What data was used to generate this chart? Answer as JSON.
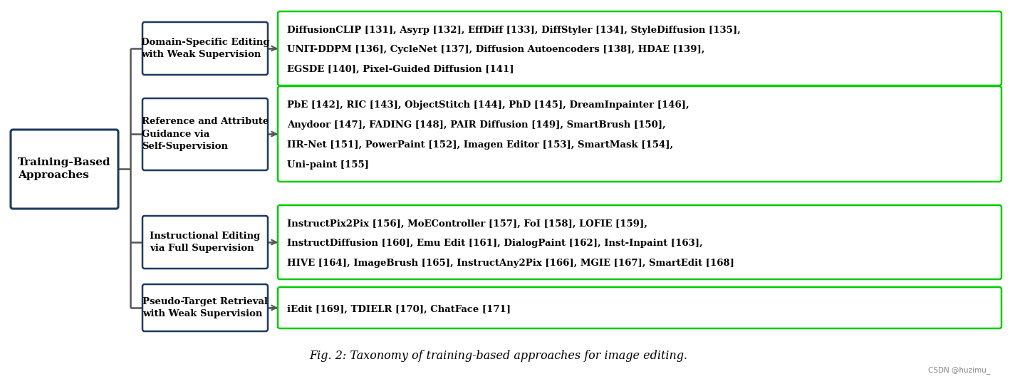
{
  "title": "Fig. 2: Taxonomy of training-based approaches for image editing.",
  "watermark": "CSDN @huzimu_",
  "root_label": "Training-Based\nApproaches",
  "branches": [
    {
      "label": "Domain-Specific Editing\nwith Weak Supervision",
      "content_parts": [
        {
          "text": "DiffusionCLIP ",
          "ref": null
        },
        {
          "text": "131",
          "ref": true
        },
        {
          "text": ", Asyrp ",
          "ref": null
        },
        {
          "text": "132",
          "ref": true
        },
        {
          "text": ", EffDiff ",
          "ref": null
        },
        {
          "text": "133",
          "ref": true
        },
        {
          "text": ", DiffStyler ",
          "ref": null
        },
        {
          "text": "134",
          "ref": true
        },
        {
          "text": ", StyleDiffusion ",
          "ref": null
        },
        {
          "text": "135",
          "ref": true
        },
        {
          "text": ",\nUNIT-DDPM ",
          "ref": null
        },
        {
          "text": "136",
          "ref": true
        },
        {
          "text": ", CycleNet ",
          "ref": null
        },
        {
          "text": "137",
          "ref": true
        },
        {
          "text": ", Diffusion Autoencoders ",
          "ref": null
        },
        {
          "text": "138",
          "ref": true
        },
        {
          "text": ", HDAE ",
          "ref": null
        },
        {
          "text": "139",
          "ref": true
        },
        {
          "text": ",\nEGSDE ",
          "ref": null
        },
        {
          "text": "140",
          "ref": true
        },
        {
          "text": ", Pixel-Guided Diffusion ",
          "ref": null
        },
        {
          "text": "141",
          "ref": true
        }
      ],
      "lines": [
        "DiffusionCLIP [131], Asyrp [132], EffDiff [133], DiffStyler [134], StyleDiffusion [135],",
        "UNIT-DDPM [136], CycleNet [137], Diffusion Autoencoders [138], HDAE [139],",
        "EGSDE [140], Pixel-Guided Diffusion [141]"
      ]
    },
    {
      "label": "Reference and Attribute\nGuidance via\nSelf-Supervision",
      "lines": [
        "PbE [142], RIC [143], ObjectStitch [144], PhD [145], DreamInpainter [146],",
        "Anydoor [147], FADING [148], PAIR Diffusion [149], SmartBrush [150],",
        "IIR-Net [151], PowerPaint [152], Imagen Editor [153], SmartMask [154],",
        "Uni-paint [155]"
      ]
    },
    {
      "label": "Instructional Editing\nvia Full Supervision",
      "lines": [
        "InstructPix2Pix [156], MoEController [157], FoI [158], LOFIE [159],",
        "InstructDiffusion [160], Emu Edit [161], DialogPaint [162], Inst-Inpaint [163],",
        "HIVE [164], ImageBrush [165], InstructAny2Pix [166], MGIE [167], SmartEdit [168]"
      ]
    },
    {
      "label": "Pseudo-Target Retrieval\nwith Weak Supervision",
      "lines": [
        "iEdit [169], TDIELR [170], ChatFace [171]"
      ]
    }
  ],
  "box_bg": "#ffffff",
  "box_border_dark": "#1e3a5f",
  "box_border_green": "#00cc00",
  "line_color": "#555555",
  "text_color": "#000000",
  "fig_bg": "#ffffff"
}
